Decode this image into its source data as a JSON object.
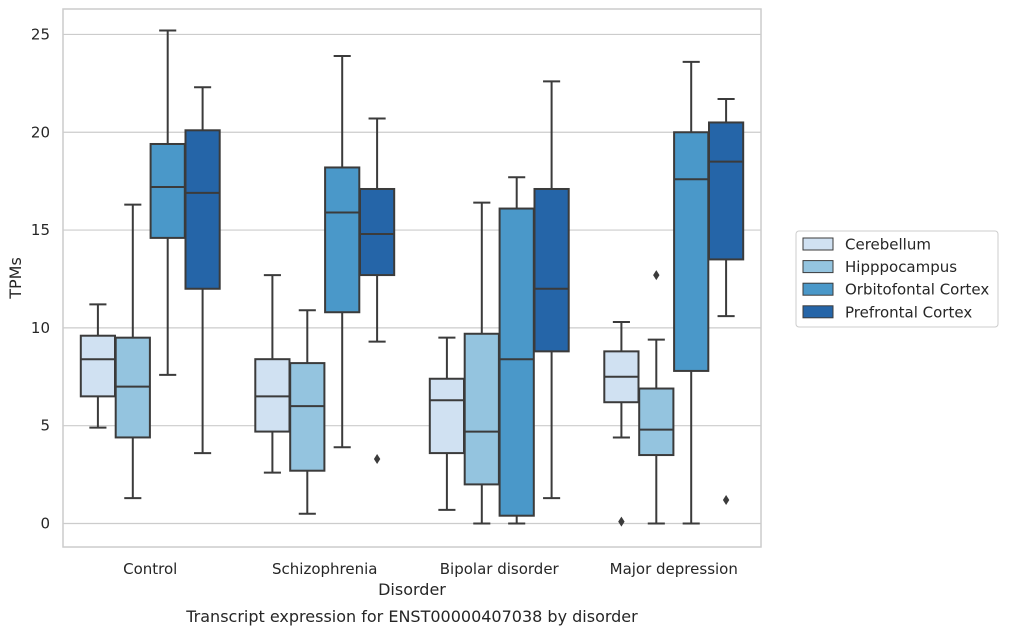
{
  "chart_data": {
    "type": "box",
    "caption": "Transcript expression for ENST00000407038 by disorder",
    "xlabel": "Disorder",
    "ylabel": "TPMs",
    "ylim": [
      -1.2,
      26.3
    ],
    "yticks": [
      0,
      5,
      10,
      15,
      20,
      25
    ],
    "grid": "horizontal",
    "legend_position": "right",
    "categories": [
      "Control",
      "Schizophrenia",
      "Bipolar disorder",
      "Major depression"
    ],
    "series": [
      {
        "name": "Cerebellum",
        "color": "#d0e1f2",
        "boxes": [
          {
            "whisker_low": 4.9,
            "q1": 6.5,
            "median": 8.4,
            "q3": 9.6,
            "whisker_high": 11.2,
            "outliers": []
          },
          {
            "whisker_low": 2.6,
            "q1": 4.7,
            "median": 6.5,
            "q3": 8.4,
            "whisker_high": 12.7,
            "outliers": []
          },
          {
            "whisker_low": 0.7,
            "q1": 3.6,
            "median": 6.3,
            "q3": 7.4,
            "whisker_high": 9.5,
            "outliers": []
          },
          {
            "whisker_low": 4.4,
            "q1": 6.2,
            "median": 7.5,
            "q3": 8.8,
            "whisker_high": 10.3,
            "outliers": [
              0.1
            ]
          }
        ]
      },
      {
        "name": "Hipppocampus",
        "color": "#94c4df",
        "boxes": [
          {
            "whisker_low": 1.3,
            "q1": 4.4,
            "median": 7.0,
            "q3": 9.5,
            "whisker_high": 16.3,
            "outliers": []
          },
          {
            "whisker_low": 0.5,
            "q1": 2.7,
            "median": 6.0,
            "q3": 8.2,
            "whisker_high": 10.9,
            "outliers": []
          },
          {
            "whisker_low": 0.0,
            "q1": 2.0,
            "median": 4.7,
            "q3": 9.7,
            "whisker_high": 16.4,
            "outliers": []
          },
          {
            "whisker_low": 0.0,
            "q1": 3.5,
            "median": 4.8,
            "q3": 6.9,
            "whisker_high": 9.4,
            "outliers": [
              12.7
            ]
          }
        ]
      },
      {
        "name": "Orbitofontal Cortex",
        "color": "#4a98c9",
        "boxes": [
          {
            "whisker_low": 7.6,
            "q1": 14.6,
            "median": 17.2,
            "q3": 19.4,
            "whisker_high": 25.2,
            "outliers": []
          },
          {
            "whisker_low": 3.9,
            "q1": 10.8,
            "median": 15.9,
            "q3": 18.2,
            "whisker_high": 23.9,
            "outliers": []
          },
          {
            "whisker_low": 0.0,
            "q1": 0.4,
            "median": 8.4,
            "q3": 16.1,
            "whisker_high": 17.7,
            "outliers": []
          },
          {
            "whisker_low": 0.0,
            "q1": 7.8,
            "median": 17.6,
            "q3": 20.0,
            "whisker_high": 23.6,
            "outliers": []
          }
        ]
      },
      {
        "name": "Prefrontal Cortex",
        "color": "#2565a8",
        "boxes": [
          {
            "whisker_low": 3.6,
            "q1": 12.0,
            "median": 16.9,
            "q3": 20.1,
            "whisker_high": 22.3,
            "outliers": []
          },
          {
            "whisker_low": 9.3,
            "q1": 12.7,
            "median": 14.8,
            "q3": 17.1,
            "whisker_high": 20.7,
            "outliers": [
              3.3
            ]
          },
          {
            "whisker_low": 1.3,
            "q1": 8.8,
            "median": 12.0,
            "q3": 17.1,
            "whisker_high": 22.6,
            "outliers": []
          },
          {
            "whisker_low": 10.6,
            "q1": 13.5,
            "median": 18.5,
            "q3": 20.5,
            "whisker_high": 21.7,
            "outliers": [
              1.2
            ]
          }
        ]
      }
    ]
  }
}
